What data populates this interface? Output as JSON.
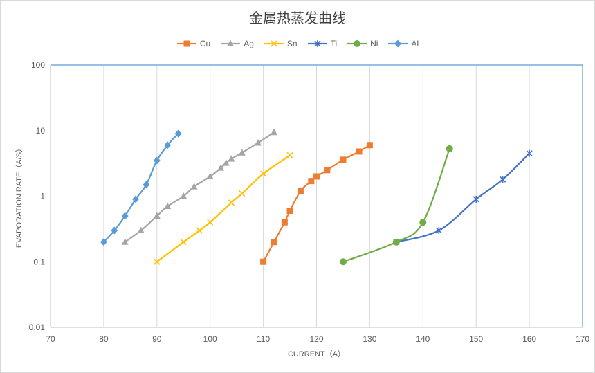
{
  "chart_data": {
    "type": "line",
    "title": "金属热蒸发曲线",
    "xlabel": "CURRENT（A）",
    "ylabel": "EVAPORATION RATE（A/S）",
    "xlim": [
      70,
      170
    ],
    "ylim": [
      0.01,
      100
    ],
    "yscale": "log",
    "x_ticks": [
      "70",
      "80",
      "90",
      "100",
      "110",
      "120",
      "130",
      "140",
      "150",
      "160",
      "170"
    ],
    "y_ticks": [
      "0.01",
      "0.1",
      "1",
      "10",
      "100"
    ],
    "grid": "vertical",
    "legend_position": "top",
    "series": [
      {
        "name": "Cu",
        "color": "#ed7d31",
        "marker": "square",
        "points": [
          [
            110,
            0.1
          ],
          [
            112,
            0.2
          ],
          [
            114,
            0.4
          ],
          [
            115,
            0.6
          ],
          [
            117,
            1.2
          ],
          [
            119,
            1.7
          ],
          [
            120,
            2.0
          ],
          [
            122,
            2.5
          ],
          [
            125,
            3.6
          ],
          [
            128,
            4.8
          ],
          [
            130,
            6.0
          ]
        ]
      },
      {
        "name": "Ag",
        "color": "#a5a5a5",
        "marker": "triangle",
        "points": [
          [
            84,
            0.2
          ],
          [
            87,
            0.3
          ],
          [
            90,
            0.5
          ],
          [
            92,
            0.7
          ],
          [
            95,
            1.0
          ],
          [
            97,
            1.4
          ],
          [
            100,
            2.0
          ],
          [
            102,
            2.7
          ],
          [
            103,
            3.2
          ],
          [
            104,
            3.7
          ],
          [
            106,
            4.6
          ],
          [
            109,
            6.5
          ],
          [
            112,
            9.4
          ]
        ]
      },
      {
        "name": "Sn",
        "color": "#ffc000",
        "marker": "x",
        "points": [
          [
            90,
            0.1
          ],
          [
            95,
            0.2
          ],
          [
            98,
            0.3
          ],
          [
            100,
            0.4
          ],
          [
            104,
            0.8
          ],
          [
            106,
            1.1
          ],
          [
            110,
            2.2
          ],
          [
            115,
            4.2
          ]
        ]
      },
      {
        "name": "Ti",
        "color": "#4472c4",
        "marker": "star",
        "points": [
          [
            135,
            0.2
          ],
          [
            143,
            0.3
          ],
          [
            150,
            0.9
          ],
          [
            155,
            1.8
          ],
          [
            160,
            4.5
          ]
        ]
      },
      {
        "name": "Ni",
        "color": "#70ad47",
        "marker": "circle",
        "points": [
          [
            125,
            0.1
          ],
          [
            135,
            0.2
          ],
          [
            140,
            0.4
          ],
          [
            145,
            5.3
          ]
        ]
      },
      {
        "name": "Al",
        "color": "#5b9bd5",
        "marker": "diamond",
        "points": [
          [
            80,
            0.2
          ],
          [
            82,
            0.3
          ],
          [
            84,
            0.5
          ],
          [
            86,
            0.9
          ],
          [
            88,
            1.5
          ],
          [
            90,
            3.5
          ],
          [
            92,
            6.0
          ],
          [
            94,
            9.0
          ]
        ]
      }
    ]
  }
}
